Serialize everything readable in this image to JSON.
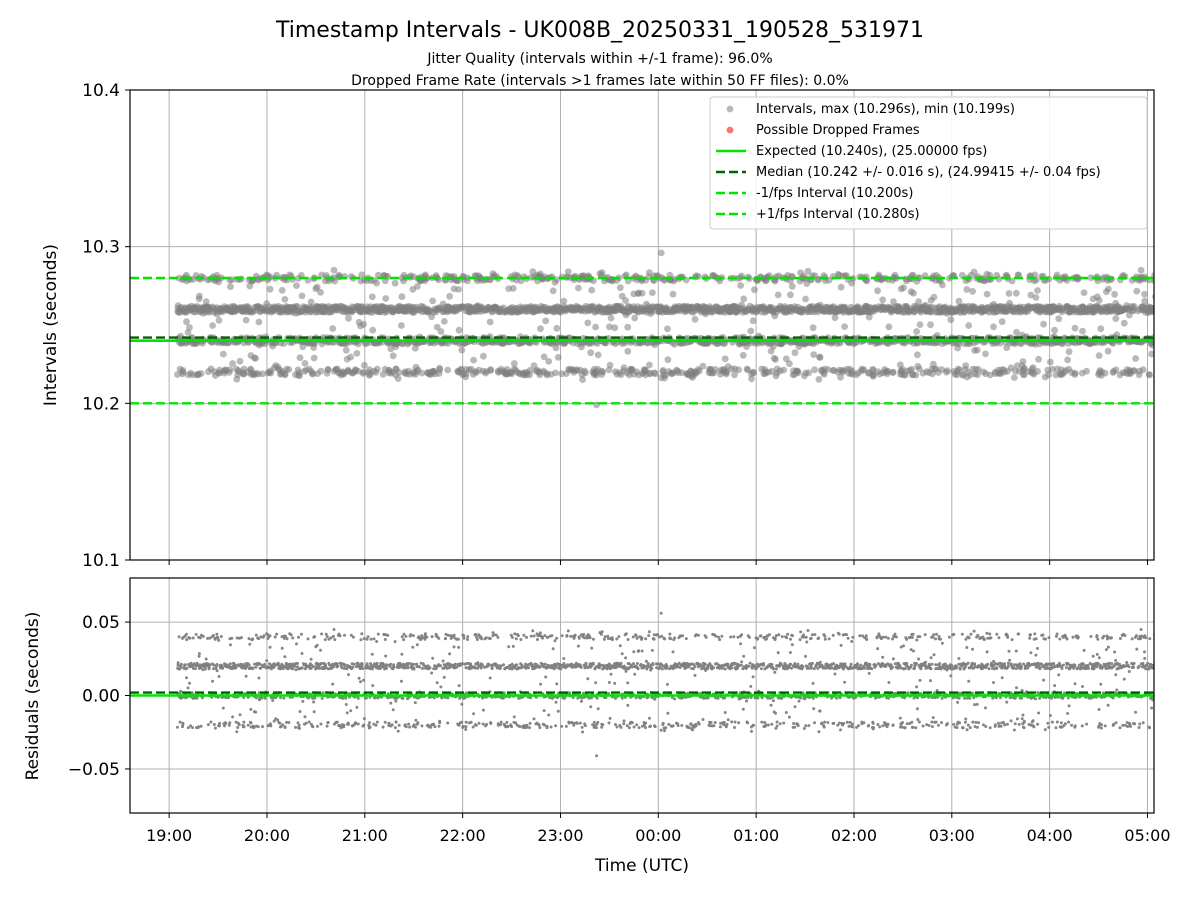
{
  "title": "Timestamp Intervals - UK008B_20250331_190528_531971",
  "subtitle_lines": [
    "Jitter Quality (intervals within +/-1 frame): 96.0%",
    "Dropped Frame Rate (intervals >1 frames late within 50 FF files): 0.0%"
  ],
  "colors": {
    "points": "#808080",
    "dropped": "#ff0000",
    "expected": "#00e400",
    "median": "#006400",
    "interval_lines": "#00e400",
    "grid": "#b0b0b0"
  },
  "chart_data": [
    {
      "type": "scatter",
      "panel": "intervals",
      "ylabel": "Intervals (seconds)",
      "ylim": [
        10.1,
        10.4
      ],
      "yticks": [
        10.1,
        10.2,
        10.3,
        10.4
      ],
      "ytick_labels": [
        "10.1",
        "10.2",
        "10.3",
        "10.4"
      ],
      "grid": true,
      "legend_position": "top-right",
      "legend": [
        {
          "label": "Intervals, max (10.296s), min (10.199s)",
          "style": "marker-gray"
        },
        {
          "label": "Possible Dropped Frames",
          "style": "marker-red"
        },
        {
          "label": "Expected (10.240s), (25.00000 fps)",
          "style": "line-solid-green"
        },
        {
          "label": "Median (10.242 +/- 0.016 s), (24.99415 +/- 0.04 fps)",
          "style": "line-dashed-darkgreen"
        },
        {
          "label": "-1/fps Interval (10.200s)",
          "style": "line-dashed-green"
        },
        {
          "label": "+1/fps Interval (10.280s)",
          "style": "line-dashed-green"
        }
      ],
      "reference_lines": {
        "expected": 10.24,
        "median": 10.242,
        "minus_interval": 10.2,
        "plus_interval": 10.28
      },
      "series": [
        {
          "name": "Intervals, max (10.296s), min (10.199s)",
          "time_start": "19:05",
          "time_end": "05:05",
          "value_levels": [
            10.22,
            10.24,
            10.26,
            10.28
          ],
          "level_weights": [
            0.14,
            0.3,
            0.44,
            0.12
          ],
          "max": 10.296,
          "min": 10.199,
          "sample_count": 3500
        },
        {
          "name": "Possible Dropped Frames",
          "points": []
        }
      ]
    },
    {
      "type": "scatter",
      "panel": "residuals",
      "xlabel": "Time (UTC)",
      "ylabel": "Residuals (seconds)",
      "ylim": [
        -0.08,
        0.08
      ],
      "yticks": [
        -0.05,
        0.0,
        0.05
      ],
      "ytick_labels": [
        "−0.05",
        "0.00",
        "0.05"
      ],
      "xlim": [
        "18:36",
        "05:04"
      ],
      "xticks": [
        "19:00",
        "20:00",
        "21:00",
        "22:00",
        "23:00",
        "00:00",
        "01:00",
        "02:00",
        "03:00",
        "04:00",
        "05:00"
      ],
      "grid": true,
      "reference_lines": {
        "expected": 0.0,
        "median": 0.002
      },
      "series": [
        {
          "name": "Residuals",
          "time_start": "19:05",
          "time_end": "05:05",
          "value_levels": [
            -0.02,
            0.0,
            0.02,
            0.04
          ],
          "max": 0.056,
          "min": -0.041
        }
      ]
    }
  ]
}
